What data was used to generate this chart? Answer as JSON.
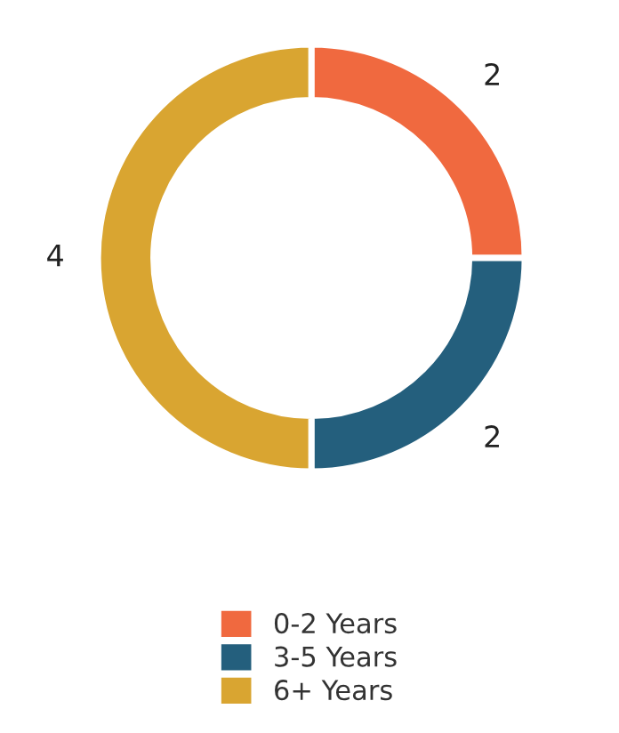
{
  "chart_data": {
    "type": "donut",
    "categories": [
      "0-2 Years",
      "3-5 Years",
      "6+ Years"
    ],
    "values": [
      2,
      2,
      4
    ],
    "colors": [
      "#f0693f",
      "#245f7d",
      "#d9a531"
    ],
    "data_labels": true,
    "legend": "bottom"
  }
}
